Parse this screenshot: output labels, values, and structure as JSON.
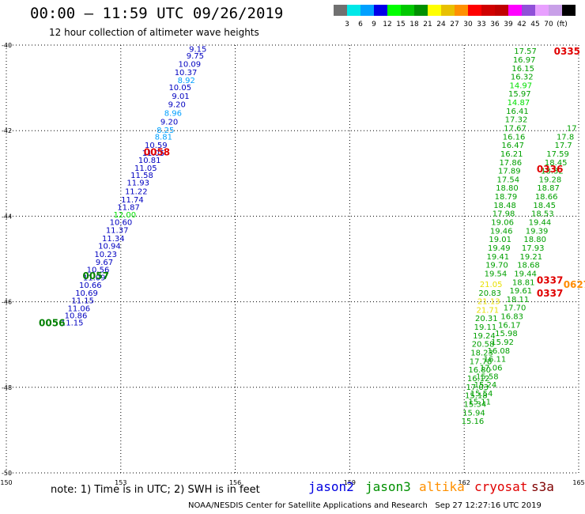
{
  "header": {
    "title": "00:00 – 11:59 UTC 09/26/2019",
    "subtitle": "12 hour collection of altimeter wave heights"
  },
  "legend": {
    "colors": [
      "#707070",
      "#00e8e8",
      "#00a0ff",
      "#0000e8",
      "#00ff00",
      "#00c800",
      "#009000",
      "#ffff00",
      "#e8c000",
      "#ff9000",
      "#ff0000",
      "#d00000",
      "#c00000",
      "#ff00ff",
      "#9050d8",
      "#e8a0ff",
      "#c8a0e8",
      "#000000"
    ],
    "labels": [
      "3",
      "6",
      "9",
      "12",
      "15",
      "18",
      "21",
      "24",
      "27",
      "30",
      "33",
      "36",
      "39",
      "42",
      "45",
      "70",
      "(ft)"
    ]
  },
  "footer": {
    "note": "note: 1) Time is in UTC; 2) SWH is in feet",
    "credit": "NOAA/NESDIS Center for Satellite Applications and Research   Sep 27 12:27:16 UTC 2019",
    "satellites": [
      {
        "name": "jason2",
        "color": "#0000e0"
      },
      {
        "name": "jason3",
        "color": "#009000"
      },
      {
        "name": "altika",
        "color": "#ff9000"
      },
      {
        "name": "cryosat",
        "color": "#e00000"
      },
      {
        "name": "s3a",
        "color": "#800000"
      }
    ]
  },
  "chart_data": {
    "type": "scatter",
    "xlim": [
      150,
      165
    ],
    "ylim": [
      -50,
      -40
    ],
    "x_ticks": [
      "150",
      "153",
      "156",
      "159",
      "162",
      "165"
    ],
    "y_ticks": [
      "-40",
      "-42",
      "-44",
      "-46",
      "-48",
      "-50"
    ],
    "grid": true,
    "tracks": [
      {
        "satellite": "jason2",
        "time_label": "0058",
        "time_label_pos": [
          153.6,
          -42.5
        ],
        "points": [
          {
            "lon": 155.25,
            "lat": -40.1,
            "v": "9.15"
          },
          {
            "lon": 155.18,
            "lat": -40.26,
            "v": "9.75"
          },
          {
            "lon": 155.1,
            "lat": -40.45,
            "v": "10.09"
          },
          {
            "lon": 155.0,
            "lat": -40.65,
            "v": "10.37"
          },
          {
            "lon": 154.95,
            "lat": -40.83,
            "v": "8.92"
          },
          {
            "lon": 154.85,
            "lat": -41.0,
            "v": "10.05"
          },
          {
            "lon": 154.8,
            "lat": -41.2,
            "v": "9.01"
          },
          {
            "lon": 154.7,
            "lat": -41.4,
            "v": "9.20"
          },
          {
            "lon": 154.6,
            "lat": -41.6,
            "v": "8.96"
          },
          {
            "lon": 154.5,
            "lat": -41.8,
            "v": "9.20"
          },
          {
            "lon": 154.4,
            "lat": -42.0,
            "v": "8.25"
          },
          {
            "lon": 154.35,
            "lat": -42.15,
            "v": "8.81"
          },
          {
            "lon": 154.22,
            "lat": -42.35,
            "v": "10.59"
          },
          {
            "lon": 154.15,
            "lat": -42.53,
            "v": "11.05"
          },
          {
            "lon": 154.05,
            "lat": -42.7,
            "v": "10.81"
          },
          {
            "lon": 153.95,
            "lat": -42.88,
            "v": "11.05"
          },
          {
            "lon": 153.85,
            "lat": -43.05,
            "v": "11.58"
          },
          {
            "lon": 153.75,
            "lat": -43.23,
            "v": "11.93"
          },
          {
            "lon": 153.7,
            "lat": -43.43,
            "v": "11.22"
          },
          {
            "lon": 153.6,
            "lat": -43.62,
            "v": "11.74"
          },
          {
            "lon": 153.5,
            "lat": -43.8,
            "v": "11.87"
          },
          {
            "lon": 153.4,
            "lat": -43.97,
            "v": "12.00"
          },
          {
            "lon": 153.3,
            "lat": -44.15,
            "v": "10.60"
          },
          {
            "lon": 153.2,
            "lat": -44.33,
            "v": "11.37"
          },
          {
            "lon": 153.1,
            "lat": -44.53,
            "v": "11.34"
          },
          {
            "lon": 153.0,
            "lat": -44.7,
            "v": "10.94"
          },
          {
            "lon": 152.9,
            "lat": -44.9,
            "v": "10.23"
          },
          {
            "lon": 152.8,
            "lat": -45.08,
            "v": "9.67"
          },
          {
            "lon": 152.7,
            "lat": -45.26,
            "v": "10.56"
          },
          {
            "lon": 152.6,
            "lat": -45.44,
            "v": "11.09"
          },
          {
            "lon": 152.5,
            "lat": -45.62,
            "v": "10.66"
          },
          {
            "lon": 152.4,
            "lat": -45.8,
            "v": "10.69"
          },
          {
            "lon": 152.3,
            "lat": -45.98,
            "v": "11.15"
          },
          {
            "lon": 152.2,
            "lat": -46.16,
            "v": "11.06"
          },
          {
            "lon": 152.12,
            "lat": -46.33,
            "v": "10.86"
          },
          {
            "lon": 152.02,
            "lat": -46.5,
            "v": "11.15"
          }
        ]
      },
      {
        "satellite": "jason3",
        "time_label": "0057",
        "time_label_pos": [
          152.0,
          -45.4
        ],
        "points": []
      },
      {
        "satellite": "jason3",
        "time_label": "0056",
        "time_label_pos": [
          150.85,
          -46.5
        ],
        "points": []
      },
      {
        "satellite": "jason3",
        "time_label": "",
        "points": [
          {
            "lon": 163.9,
            "lat": -40.15,
            "v": "17.57"
          },
          {
            "lon": 163.87,
            "lat": -40.35,
            "v": "16.97"
          },
          {
            "lon": 163.84,
            "lat": -40.55,
            "v": "16.15"
          },
          {
            "lon": 163.81,
            "lat": -40.75,
            "v": "16.32"
          },
          {
            "lon": 163.78,
            "lat": -40.95,
            "v": "14.97"
          },
          {
            "lon": 163.75,
            "lat": -41.15,
            "v": "15.97"
          },
          {
            "lon": 163.72,
            "lat": -41.35,
            "v": "14.87"
          },
          {
            "lon": 163.69,
            "lat": -41.55,
            "v": "16.41"
          },
          {
            "lon": 163.66,
            "lat": -41.75,
            "v": "17.32"
          },
          {
            "lon": 163.63,
            "lat": -41.95,
            "v": "17.67"
          },
          {
            "lon": 163.6,
            "lat": -42.15,
            "v": "16.16"
          },
          {
            "lon": 163.57,
            "lat": -42.35,
            "v": "16.47"
          },
          {
            "lon": 163.54,
            "lat": -42.55,
            "v": "16.21"
          },
          {
            "lon": 163.51,
            "lat": -42.75,
            "v": "17.86"
          },
          {
            "lon": 163.48,
            "lat": -42.95,
            "v": "17.89"
          },
          {
            "lon": 163.45,
            "lat": -43.15,
            "v": "17.54"
          },
          {
            "lon": 163.42,
            "lat": -43.35,
            "v": "18.80"
          },
          {
            "lon": 163.39,
            "lat": -43.55,
            "v": "18.79"
          },
          {
            "lon": 163.36,
            "lat": -43.75,
            "v": "18.48"
          },
          {
            "lon": 163.33,
            "lat": -43.95,
            "v": "17.98"
          },
          {
            "lon": 163.3,
            "lat": -44.15,
            "v": "19.06"
          },
          {
            "lon": 163.27,
            "lat": -44.35,
            "v": "19.46"
          },
          {
            "lon": 163.24,
            "lat": -44.55,
            "v": "19.01"
          },
          {
            "lon": 163.21,
            "lat": -44.75,
            "v": "19.49"
          },
          {
            "lon": 163.18,
            "lat": -44.95,
            "v": "19.41"
          },
          {
            "lon": 163.15,
            "lat": -45.15,
            "v": "19.70"
          },
          {
            "lon": 163.12,
            "lat": -45.35,
            "v": "19.54"
          },
          {
            "lon": 163.0,
            "lat": -45.6,
            "v": "21.05"
          },
          {
            "lon": 162.97,
            "lat": -45.8,
            "v": "20.83"
          },
          {
            "lon": 162.94,
            "lat": -46.0,
            "v": "21.13"
          },
          {
            "lon": 162.91,
            "lat": -46.2,
            "v": "21.71"
          },
          {
            "lon": 162.88,
            "lat": -46.4,
            "v": "20.31"
          },
          {
            "lon": 162.85,
            "lat": -46.6,
            "v": "19.11"
          },
          {
            "lon": 162.82,
            "lat": -46.8,
            "v": "19.24"
          },
          {
            "lon": 162.79,
            "lat": -47.0,
            "v": "20.58"
          },
          {
            "lon": 162.76,
            "lat": -47.2,
            "v": "18.23"
          },
          {
            "lon": 162.73,
            "lat": -47.4,
            "v": "17.78"
          },
          {
            "lon": 162.7,
            "lat": -47.6,
            "v": "16.80"
          },
          {
            "lon": 162.67,
            "lat": -47.8,
            "v": "16.12"
          },
          {
            "lon": 162.64,
            "lat": -48.0,
            "v": "17.03"
          },
          {
            "lon": 162.61,
            "lat": -48.2,
            "v": "15.18"
          },
          {
            "lon": 162.58,
            "lat": -48.4,
            "v": "15.34"
          },
          {
            "lon": 162.55,
            "lat": -48.6,
            "v": "15.94"
          },
          {
            "lon": 162.52,
            "lat": -48.8,
            "v": "15.16"
          }
        ]
      },
      {
        "satellite": "jason3",
        "time_label": "",
        "points": [
          {
            "lon": 164.95,
            "lat": -41.95,
            "v": "17"
          },
          {
            "lon": 164.88,
            "lat": -42.15,
            "v": "17.8"
          },
          {
            "lon": 164.83,
            "lat": -42.35,
            "v": "17.7"
          },
          {
            "lon": 164.75,
            "lat": -42.55,
            "v": "17.59"
          },
          {
            "lon": 164.7,
            "lat": -42.75,
            "v": "18.45"
          },
          {
            "lon": 164.6,
            "lat": -42.95,
            "v": "18.32"
          },
          {
            "lon": 164.55,
            "lat": -43.15,
            "v": "19.28"
          },
          {
            "lon": 164.5,
            "lat": -43.35,
            "v": "18.87"
          },
          {
            "lon": 164.45,
            "lat": -43.55,
            "v": "18.66"
          },
          {
            "lon": 164.4,
            "lat": -43.75,
            "v": "18.45"
          },
          {
            "lon": 164.35,
            "lat": -43.95,
            "v": "18.53"
          },
          {
            "lon": 164.28,
            "lat": -44.15,
            "v": "19.44"
          },
          {
            "lon": 164.2,
            "lat": -44.35,
            "v": "19.39"
          },
          {
            "lon": 164.15,
            "lat": -44.55,
            "v": "18.80"
          },
          {
            "lon": 164.1,
            "lat": -44.75,
            "v": "17.93"
          },
          {
            "lon": 164.05,
            "lat": -44.95,
            "v": "19.21"
          },
          {
            "lon": 163.98,
            "lat": -45.15,
            "v": "18.68"
          },
          {
            "lon": 163.9,
            "lat": -45.35,
            "v": "19.44"
          },
          {
            "lon": 163.85,
            "lat": -45.55,
            "v": "18.81"
          },
          {
            "lon": 163.78,
            "lat": -45.75,
            "v": "19.61"
          },
          {
            "lon": 163.7,
            "lat": -45.95,
            "v": "18.11"
          },
          {
            "lon": 163.62,
            "lat": -46.15,
            "v": "17.70"
          },
          {
            "lon": 163.55,
            "lat": -46.35,
            "v": "16.83"
          },
          {
            "lon": 163.48,
            "lat": -46.55,
            "v": "16.17"
          },
          {
            "lon": 163.4,
            "lat": -46.75,
            "v": "15.98"
          },
          {
            "lon": 163.3,
            "lat": -46.95,
            "v": "15.92"
          },
          {
            "lon": 163.2,
            "lat": -47.15,
            "v": "16.08"
          },
          {
            "lon": 163.1,
            "lat": -47.35,
            "v": "16.11"
          },
          {
            "lon": 163.0,
            "lat": -47.55,
            "v": "17.06"
          },
          {
            "lon": 162.9,
            "lat": -47.75,
            "v": "15.58"
          },
          {
            "lon": 162.85,
            "lat": -47.95,
            "v": "15.24"
          },
          {
            "lon": 162.75,
            "lat": -48.15,
            "v": "15.54"
          },
          {
            "lon": 162.7,
            "lat": -48.35,
            "v": "15.11"
          }
        ]
      },
      {
        "satellite": "cryosat",
        "time_label": "0335",
        "time_label_pos": [
          164.35,
          -40.15
        ],
        "points": []
      },
      {
        "satellite": "cryosat",
        "time_label": "0336",
        "time_label_pos": [
          163.9,
          -42.9
        ],
        "points": []
      },
      {
        "satellite": "cryosat",
        "time_label": "0337",
        "time_label_pos": [
          163.9,
          -45.5
        ],
        "points": []
      },
      {
        "satellite": "cryosat",
        "time_label": "0337",
        "time_label_pos": [
          163.9,
          -45.8
        ],
        "points": []
      },
      {
        "satellite": "altika",
        "time_label": "0627",
        "time_label_pos": [
          164.6,
          -45.6
        ],
        "points": []
      }
    ]
  }
}
